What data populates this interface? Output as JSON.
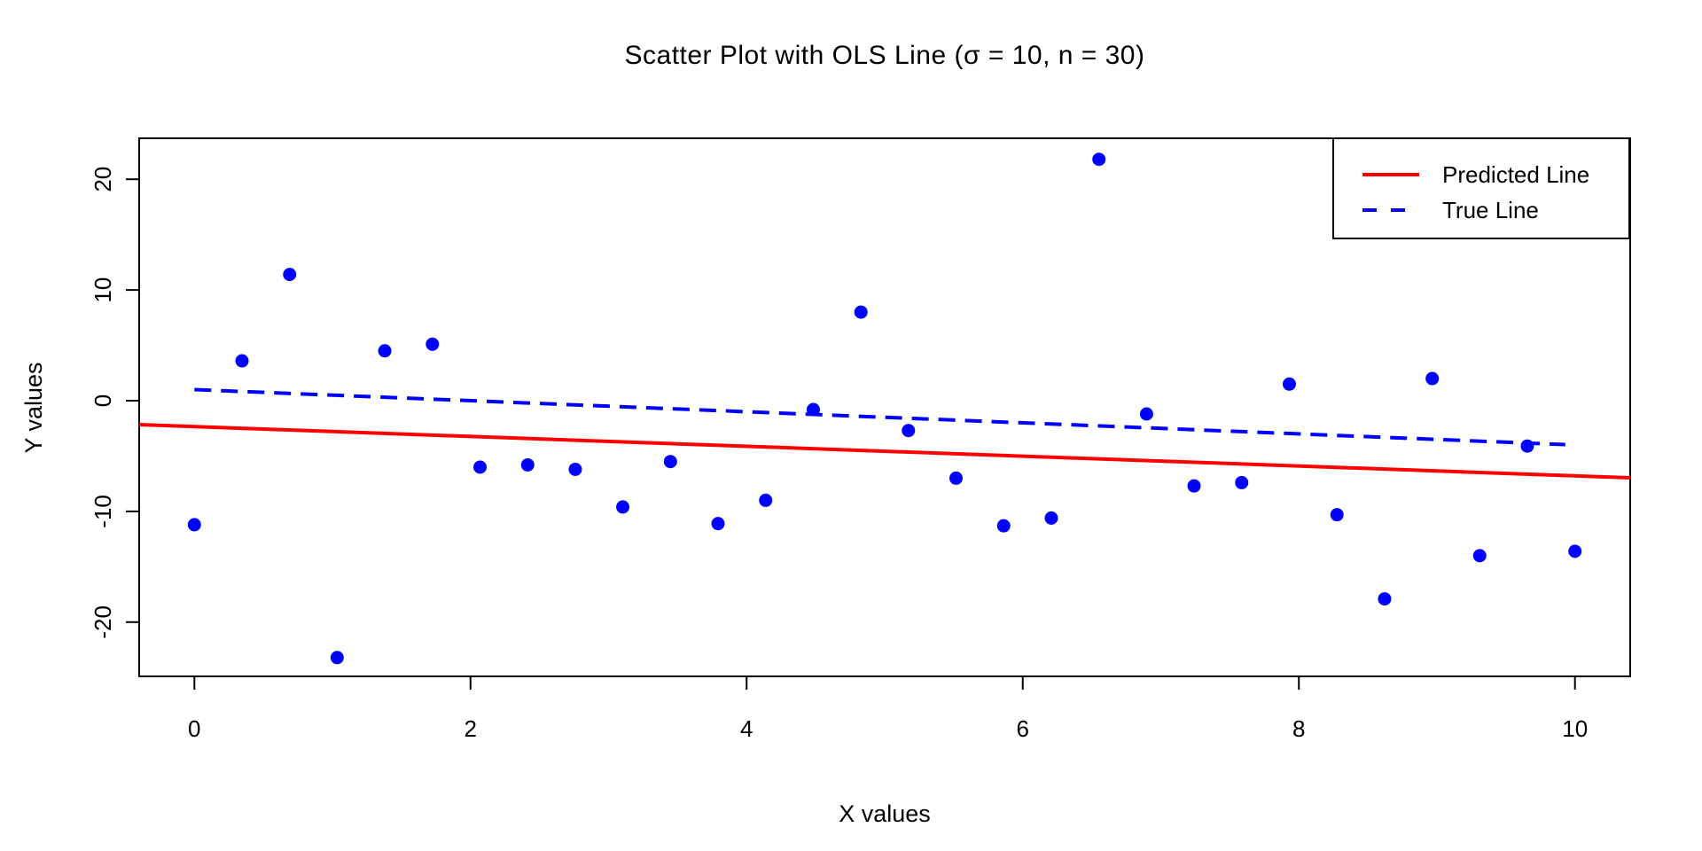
{
  "title": "Scatter Plot with OLS Line (σ = 10, n = 30)",
  "x_axis": {
    "label": "X values",
    "tick_labels": [
      "0",
      "2",
      "4",
      "6",
      "8",
      "10"
    ]
  },
  "y_axis": {
    "label": "Y values",
    "tick_labels": [
      "-20",
      "-10",
      "0",
      "10",
      "20"
    ]
  },
  "legend": {
    "position": "topright",
    "items": [
      {
        "label": "Predicted Line",
        "color": "#ff0000",
        "style": "solid"
      },
      {
        "label": "True Line",
        "color": "#0000ff",
        "style": "dashed"
      }
    ]
  },
  "colors": {
    "points": "#0000ff",
    "predicted_line": "#ff0000",
    "true_line": "#0000ff",
    "frame": "#000000",
    "background": "#ffffff"
  },
  "chart_data": {
    "type": "scatter",
    "title": "Scatter Plot with OLS Line (σ = 10, n = 30)",
    "xlabel": "X values",
    "ylabel": "Y values",
    "n": 30,
    "sigma": 10,
    "grid": false,
    "legend_position": "topright",
    "xlim": [
      -0.4,
      10.4
    ],
    "ylim": [
      -24.9,
      23.7
    ],
    "x_ticks": [
      0,
      2,
      4,
      6,
      8,
      10
    ],
    "y_ticks": [
      -20,
      -10,
      0,
      10,
      20
    ],
    "points": {
      "x": [
        0.0,
        0.345,
        0.69,
        1.034,
        1.379,
        1.724,
        2.069,
        2.414,
        2.759,
        3.103,
        3.448,
        3.793,
        4.138,
        4.483,
        4.828,
        5.172,
        5.517,
        5.862,
        6.207,
        6.552,
        6.897,
        7.241,
        7.586,
        7.931,
        8.276,
        8.621,
        8.966,
        9.31,
        9.655,
        10.0
      ],
      "y": [
        -11.2,
        3.6,
        11.4,
        -23.2,
        4.5,
        5.1,
        -6.0,
        -5.8,
        -6.2,
        -9.6,
        -5.5,
        -11.1,
        -9.0,
        -0.8,
        8.0,
        -2.7,
        -7.0,
        -11.3,
        -10.6,
        21.8,
        -1.2,
        -7.7,
        -7.4,
        1.5,
        -10.3,
        -17.9,
        2.0,
        -14.0,
        -4.1,
        -13.6
      ]
    },
    "series": [
      {
        "name": "Predicted Line",
        "type": "line",
        "style": "solid",
        "color": "#ff0000",
        "intercept": -2.34,
        "slope": -0.445,
        "x_range": [
          -0.4,
          10.4
        ]
      },
      {
        "name": "True Line",
        "type": "line",
        "style": "dashed",
        "color": "#0000ff",
        "intercept": 1.0,
        "slope": -0.5,
        "x_range": [
          0,
          9.93
        ]
      }
    ]
  }
}
